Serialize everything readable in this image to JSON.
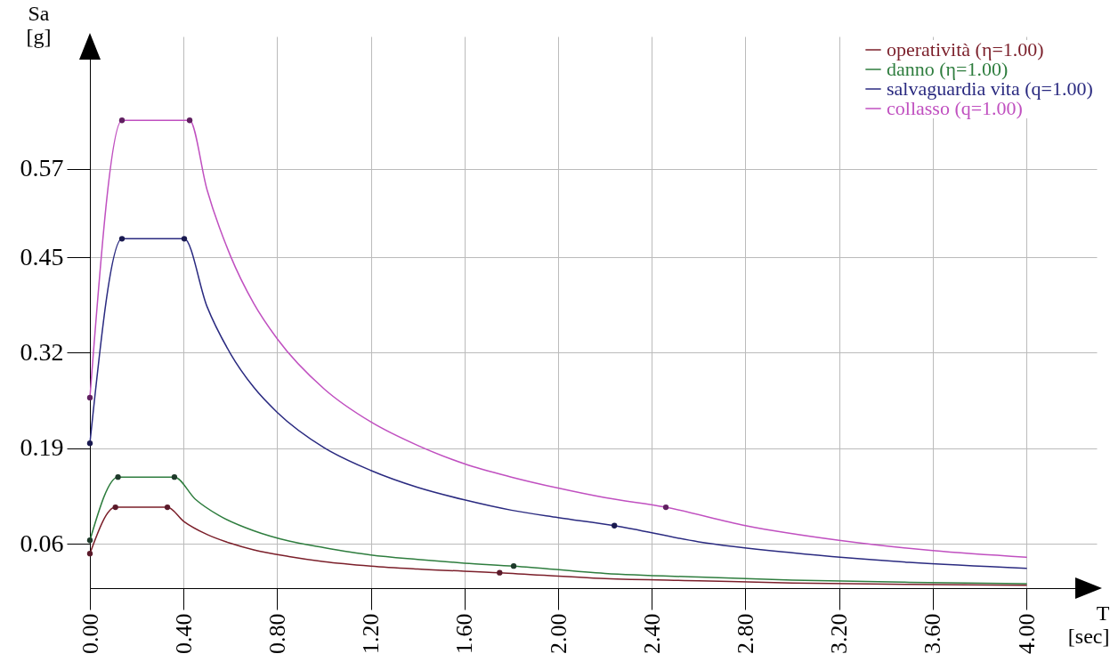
{
  "chart_data": {
    "type": "line",
    "xlabel": "T\n[sec]",
    "ylabel": "Sa\n[g]",
    "xlim": [
      0,
      4.3
    ],
    "ylim": [
      0,
      0.75
    ],
    "xticks": [
      {
        "value": 0,
        "label": "0.00"
      },
      {
        "value": 0.4,
        "label": "0.40"
      },
      {
        "value": 0.8,
        "label": "0.80"
      },
      {
        "value": 1.2,
        "label": "1.20"
      },
      {
        "value": 1.6,
        "label": "1.60"
      },
      {
        "value": 2,
        "label": "2.00"
      },
      {
        "value": 2.4,
        "label": "2.40"
      },
      {
        "value": 2.8,
        "label": "2.80"
      },
      {
        "value": 3.2,
        "label": "3.20"
      },
      {
        "value": 3.6,
        "label": "3.60"
      },
      {
        "value": 4,
        "label": "4.00"
      }
    ],
    "yticks": [
      0.06,
      0.19,
      0.32,
      0.45,
      0.57
    ],
    "grid": true,
    "legend": "top right",
    "series": [
      {
        "name": "operatività (η=1.00)",
        "color": "#7b1f2a",
        "x": [
          0,
          0.109,
          0.331,
          0.4,
          0.5,
          0.6,
          0.7,
          0.85,
          1.0,
          1.2,
          1.4,
          1.75,
          2.2,
          2.6,
          3.0,
          3.5,
          4.0
        ],
        "values": [
          0.047,
          0.11,
          0.11,
          0.091,
          0.073,
          0.061,
          0.052,
          0.043,
          0.036,
          0.03,
          0.026,
          0.021,
          0.013,
          0.01,
          0.007,
          0.005,
          0.004
        ]
      },
      {
        "name": "danno (η=1.00)",
        "color": "#2e7d3e",
        "x": [
          0,
          0.12,
          0.361,
          0.45,
          0.55,
          0.7,
          0.85,
          1.0,
          1.2,
          1.4,
          1.6,
          1.81,
          2.2,
          2.6,
          3.0,
          3.5,
          4.0
        ],
        "values": [
          0.065,
          0.151,
          0.151,
          0.121,
          0.099,
          0.078,
          0.064,
          0.055,
          0.045,
          0.039,
          0.034,
          0.03,
          0.02,
          0.015,
          0.011,
          0.008,
          0.006
        ]
      },
      {
        "name": "salvaguardia vita (q=1.00)",
        "color": "#2a2a80",
        "x": [
          0,
          0.137,
          0.403,
          0.5,
          0.6,
          0.7,
          0.8,
          1.0,
          1.2,
          1.4,
          1.6,
          1.8,
          2.0,
          2.24,
          2.6,
          3.0,
          3.5,
          4.0
        ],
        "values": [
          0.197,
          0.475,
          0.475,
          0.383,
          0.319,
          0.273,
          0.239,
          0.191,
          0.16,
          0.137,
          0.12,
          0.106,
          0.096,
          0.085,
          0.063,
          0.048,
          0.035,
          0.027
        ]
      },
      {
        "name": "collasso (q=1.00)",
        "color": "#c050c0",
        "x": [
          0,
          0.137,
          0.426,
          0.5,
          0.6,
          0.7,
          0.8,
          1.0,
          1.2,
          1.4,
          1.6,
          1.8,
          2.0,
          2.2,
          2.46,
          2.8,
          3.2,
          3.6,
          4.0
        ],
        "values": [
          0.259,
          0.636,
          0.636,
          0.542,
          0.452,
          0.387,
          0.339,
          0.271,
          0.226,
          0.194,
          0.169,
          0.151,
          0.136,
          0.123,
          0.11,
          0.085,
          0.065,
          0.051,
          0.042
        ]
      },
      {
        "type": "scatter",
        "color": "#5a1a2a",
        "x": [
          0,
          0.109,
          0.331,
          1.75
        ],
        "values": [
          0.047,
          0.11,
          0.11,
          0.021
        ]
      },
      {
        "type": "scatter",
        "color": "#1e3a2a",
        "x": [
          0,
          0.12,
          0.361,
          1.81
        ],
        "values": [
          0.065,
          0.151,
          0.151,
          0.03
        ]
      },
      {
        "type": "scatter",
        "color": "#1a1a50",
        "x": [
          0,
          0.137,
          0.403,
          2.24
        ],
        "values": [
          0.197,
          0.475,
          0.475,
          0.085
        ]
      },
      {
        "type": "scatter",
        "color": "#602060",
        "x": [
          0,
          0.137,
          0.426,
          2.46
        ],
        "values": [
          0.259,
          0.636,
          0.636,
          0.11
        ]
      }
    ]
  }
}
